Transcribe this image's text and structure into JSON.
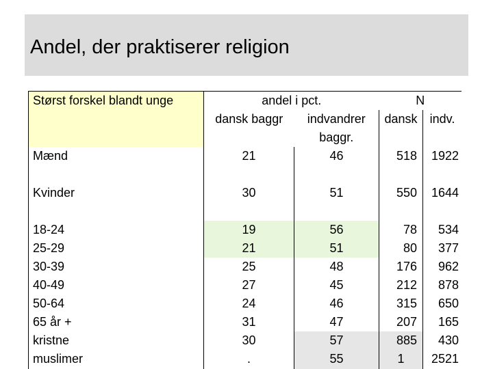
{
  "title": "Andel, der praktiserer religion",
  "table": {
    "corner_label": "Størst forskel blandt unge",
    "header": {
      "group_pct": "andel i pct.",
      "group_n": "N",
      "dansk_baggr": "dansk baggr",
      "indvandrer_baggr": "indvandrer baggr.",
      "dansk": "dansk",
      "indv": "indv."
    },
    "rows": [
      {
        "label": "Mænd",
        "dansk_pct": "21",
        "indv_pct": "46",
        "n_dansk": "518",
        "n_indv": "1922"
      },
      {
        "label": "Kvinder",
        "dansk_pct": "30",
        "indv_pct": "51",
        "n_dansk": "550",
        "n_indv": "1644"
      },
      {
        "label": "18-24",
        "dansk_pct": "19",
        "indv_pct": "56",
        "n_dansk": "78",
        "n_indv": "534"
      },
      {
        "label": "25-29",
        "dansk_pct": "21",
        "indv_pct": "51",
        "n_dansk": "80",
        "n_indv": "377"
      },
      {
        "label": "30-39",
        "dansk_pct": "25",
        "indv_pct": "48",
        "n_dansk": "176",
        "n_indv": "962"
      },
      {
        "label": "40-49",
        "dansk_pct": "27",
        "indv_pct": "45",
        "n_dansk": "212",
        "n_indv": "878"
      },
      {
        "label": "50-64",
        "dansk_pct": "24",
        "indv_pct": "46",
        "n_dansk": "315",
        "n_indv": "650"
      },
      {
        "label": "65 år +",
        "dansk_pct": "31",
        "indv_pct": "47",
        "n_dansk": "207",
        "n_indv": "165"
      },
      {
        "label": "kristne",
        "dansk_pct": "30",
        "indv_pct": "57",
        "n_dansk": "885",
        "n_indv": "430"
      },
      {
        "label": "muslimer",
        "dansk_pct": ".",
        "indv_pct": "55",
        "n_dansk": "1",
        "n_indv": "2521"
      }
    ]
  }
}
